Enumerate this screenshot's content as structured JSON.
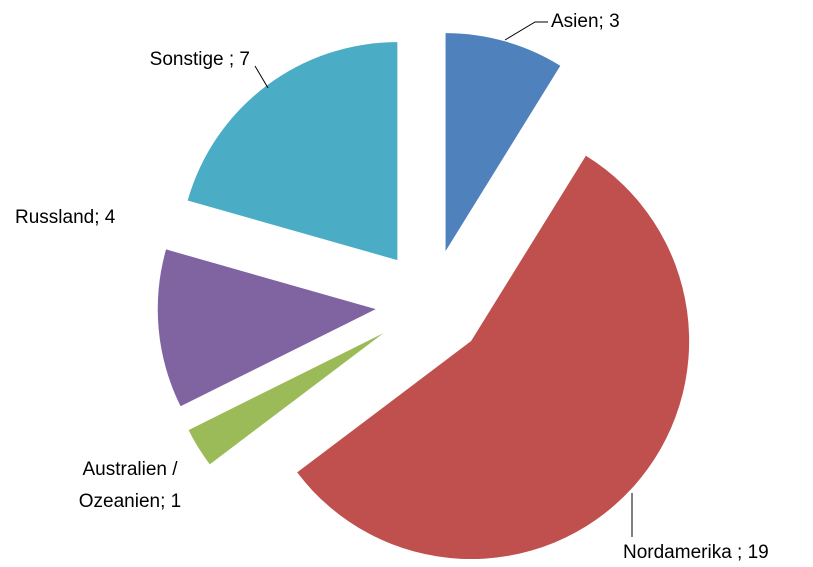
{
  "chart_data": {
    "type": "pie",
    "labels": [
      "Asien; 3",
      "Nordamerika ; 19",
      "Australien /\nOzeanien; 1",
      "Russland; 4",
      "Sonstige ; 7"
    ],
    "values": [
      3,
      19,
      1,
      4,
      7
    ],
    "colors": [
      "#4f81bd",
      "#c0504d",
      "#9bbb59",
      "#8064a2",
      "#4bacc6"
    ],
    "exploded": true
  }
}
